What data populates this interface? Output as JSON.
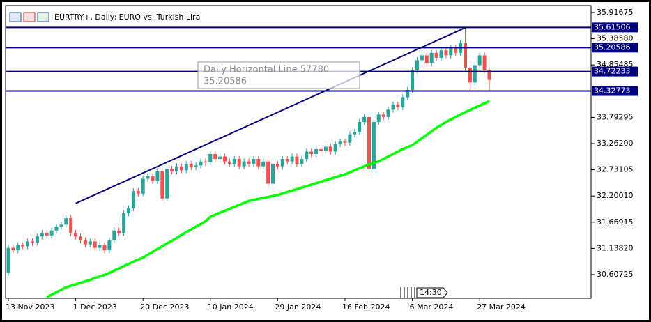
{
  "chart_data": {
    "type": "candlestick",
    "title": "EURTRY+, Daily:  EURO vs. Turkish Lira",
    "time_label": "14:30",
    "categories": [
      "13 Nov 2023",
      null,
      null,
      null,
      null,
      null,
      null,
      null,
      null,
      null,
      null,
      null,
      null,
      null,
      "1 Dec 2023",
      null,
      null,
      null,
      null,
      null,
      null,
      null,
      null,
      null,
      null,
      null,
      null,
      null,
      "20 Dec 2023",
      null,
      null,
      null,
      null,
      null,
      null,
      null,
      null,
      null,
      null,
      null,
      null,
      null,
      "10 Jan 2024",
      null,
      null,
      null,
      null,
      null,
      null,
      null,
      null,
      null,
      null,
      null,
      null,
      null,
      "29 Jan 2024",
      null,
      null,
      null,
      null,
      null,
      null,
      null,
      null,
      null,
      null,
      null,
      null,
      null,
      "16 Feb 2024",
      null,
      null,
      null,
      null,
      null,
      null,
      null,
      null,
      null,
      null,
      null,
      null,
      null,
      "6 Mar 2024",
      null,
      null,
      null,
      null,
      null,
      null,
      null,
      null,
      null,
      null,
      null,
      null,
      null,
      "27 Mar 2024",
      null,
      null
    ],
    "open": [
      30.65,
      31.15,
      31.1,
      31.2,
      31.18,
      31.28,
      31.25,
      31.38,
      31.45,
      31.4,
      31.5,
      31.58,
      31.62,
      31.75,
      31.45,
      31.38,
      31.3,
      31.22,
      31.28,
      31.15,
      31.2,
      31.1,
      31.3,
      31.5,
      31.45,
      31.85,
      31.95,
      32.3,
      32.25,
      32.55,
      32.6,
      32.5,
      32.7,
      32.15,
      32.75,
      32.7,
      32.8,
      32.72,
      32.85,
      32.78,
      32.82,
      32.9,
      32.88,
      33.05,
      32.95,
      33.0,
      32.9,
      32.85,
      32.95,
      32.8,
      32.9,
      32.85,
      32.95,
      32.8,
      32.9,
      32.45,
      32.85,
      32.8,
      32.95,
      32.9,
      33.0,
      32.85,
      32.95,
      33.1,
      33.05,
      33.15,
      33.12,
      33.2,
      33.1,
      33.25,
      33.3,
      33.28,
      33.45,
      33.5,
      33.7,
      33.8,
      32.75,
      33.7,
      33.85,
      33.8,
      33.95,
      34.05,
      34.0,
      34.2,
      34.35,
      34.75,
      34.95,
      35.05,
      34.9,
      35.1,
      35.0,
      35.15,
      35.05,
      35.2,
      35.1,
      35.3,
      34.8,
      34.5,
      34.85,
      35.05,
      34.75
    ],
    "high": [
      31.21,
      31.21,
      31.26,
      31.26,
      31.34,
      31.34,
      31.44,
      31.51,
      31.51,
      31.56,
      31.64,
      31.68,
      31.81,
      31.81,
      31.51,
      31.44,
      31.36,
      31.34,
      31.34,
      31.26,
      31.26,
      31.36,
      31.56,
      31.56,
      31.91,
      32.01,
      32.36,
      32.36,
      32.61,
      32.66,
      32.66,
      32.76,
      32.76,
      32.81,
      32.81,
      32.86,
      32.86,
      32.91,
      32.91,
      32.88,
      32.96,
      32.96,
      33.11,
      33.11,
      33.06,
      33.06,
      32.96,
      33.01,
      33.01,
      32.96,
      32.96,
      33.01,
      33.01,
      32.96,
      32.96,
      32.91,
      32.91,
      33.01,
      33.01,
      33.06,
      33.06,
      33.01,
      33.16,
      33.16,
      33.21,
      33.21,
      33.26,
      33.26,
      33.31,
      33.36,
      33.36,
      33.51,
      33.56,
      33.76,
      33.86,
      33.86,
      33.76,
      33.91,
      33.91,
      34.01,
      34.11,
      34.11,
      34.26,
      34.41,
      34.81,
      35.01,
      35.11,
      35.11,
      35.16,
      35.16,
      35.21,
      35.21,
      35.26,
      35.26,
      35.36,
      35.61,
      34.86,
      34.91,
      35.11,
      35.11,
      34.81
    ],
    "low": [
      30.59,
      31.04,
      31.04,
      31.12,
      31.12,
      31.19,
      31.19,
      31.32,
      31.34,
      31.34,
      31.44,
      31.52,
      31.56,
      31.39,
      31.32,
      31.24,
      31.16,
      31.16,
      31.09,
      31.09,
      31.04,
      31.04,
      31.24,
      31.39,
      31.39,
      31.79,
      31.89,
      32.19,
      32.19,
      32.49,
      32.44,
      32.44,
      32.09,
      32.09,
      32.64,
      32.64,
      32.66,
      32.66,
      32.72,
      32.72,
      32.76,
      32.82,
      32.82,
      32.89,
      32.89,
      32.84,
      32.79,
      32.79,
      32.74,
      32.74,
      32.79,
      32.79,
      32.74,
      32.74,
      32.39,
      32.39,
      32.74,
      32.74,
      32.84,
      32.84,
      32.79,
      32.79,
      32.89,
      32.99,
      32.99,
      33.06,
      33.06,
      33.04,
      33.04,
      33.19,
      33.22,
      33.22,
      33.39,
      33.44,
      33.64,
      32.6,
      32.69,
      33.64,
      33.74,
      33.74,
      33.89,
      33.94,
      33.94,
      34.14,
      34.29,
      34.69,
      34.89,
      34.84,
      34.84,
      34.94,
      34.94,
      34.99,
      34.99,
      35.04,
      35.04,
      34.74,
      34.35,
      34.44,
      34.79,
      34.69,
      34.32
    ],
    "close": [
      31.15,
      31.1,
      31.2,
      31.18,
      31.28,
      31.25,
      31.38,
      31.45,
      31.4,
      31.5,
      31.58,
      31.62,
      31.75,
      31.45,
      31.38,
      31.3,
      31.22,
      31.28,
      31.15,
      31.2,
      31.1,
      31.3,
      31.5,
      31.45,
      31.85,
      31.95,
      32.3,
      32.25,
      32.55,
      32.6,
      32.5,
      32.7,
      32.15,
      32.75,
      32.7,
      32.8,
      32.72,
      32.85,
      32.78,
      32.82,
      32.9,
      32.88,
      33.05,
      32.95,
      33.0,
      32.9,
      32.85,
      32.95,
      32.8,
      32.9,
      32.85,
      32.95,
      32.8,
      32.9,
      32.45,
      32.85,
      32.8,
      32.95,
      32.9,
      33.0,
      32.85,
      32.95,
      33.1,
      33.05,
      33.15,
      33.12,
      33.2,
      33.1,
      33.25,
      33.3,
      33.28,
      33.45,
      33.5,
      33.7,
      33.8,
      32.75,
      33.7,
      33.85,
      33.8,
      33.95,
      34.05,
      34.0,
      34.2,
      34.35,
      34.75,
      34.95,
      35.05,
      34.9,
      35.1,
      35.0,
      35.15,
      35.05,
      35.2,
      35.1,
      35.3,
      34.8,
      34.5,
      34.85,
      35.05,
      34.75,
      34.55
    ],
    "up_color": "#26a69a",
    "down_color": "#ef5350",
    "moving_average": {
      "color": "#00ff00",
      "values": [
        null,
        null,
        null,
        null,
        null,
        null,
        null,
        null,
        30.15,
        30.2,
        30.25,
        30.3,
        30.35,
        30.38,
        30.41,
        30.44,
        30.47,
        30.5,
        30.54,
        30.57,
        30.6,
        30.64,
        30.69,
        30.73,
        30.78,
        30.82,
        30.87,
        30.91,
        30.95,
        31.01,
        31.07,
        31.13,
        31.18,
        31.24,
        31.29,
        31.35,
        31.41,
        31.47,
        31.52,
        31.58,
        31.63,
        31.69,
        31.78,
        31.82,
        31.86,
        31.9,
        31.94,
        31.98,
        32.02,
        32.06,
        32.1,
        32.12,
        32.14,
        32.16,
        32.18,
        32.2,
        32.22,
        32.25,
        32.28,
        32.31,
        32.34,
        32.37,
        32.4,
        32.43,
        32.46,
        32.49,
        32.52,
        32.55,
        32.58,
        32.61,
        32.64,
        32.68,
        32.72,
        32.76,
        32.8,
        32.84,
        32.87,
        32.9,
        32.95,
        33.0,
        33.05,
        33.1,
        33.15,
        33.19,
        33.23,
        33.3,
        33.37,
        33.44,
        33.51,
        33.58,
        33.64,
        33.7,
        33.75,
        33.8,
        33.85,
        33.9,
        33.94,
        33.99,
        34.03,
        34.08,
        34.12
      ]
    },
    "hlines": [
      35.61506,
      35.20586,
      34.72233,
      34.32773
    ],
    "hline_color": "#000080",
    "trend_line": {
      "x": [
        14,
        95
      ],
      "y": [
        32.05,
        35.61
      ]
    },
    "tooltip": {
      "title": "Daily Horizontal Line 57780",
      "value": "35.20586"
    },
    "ylim": [
      30.127,
      36.058
    ],
    "yticks": [
      35.91675,
      {
        "value": 35.3858,
        "label": "35.38580"
      },
      34.85485,
      33.79295,
      {
        "value": 33.262,
        "label": "33.26200"
      },
      32.73105,
      {
        "value": 32.2001,
        "label": "32.20010"
      },
      31.66915,
      {
        "value": 31.1382,
        "label": "31.13820"
      },
      30.60725
    ]
  }
}
